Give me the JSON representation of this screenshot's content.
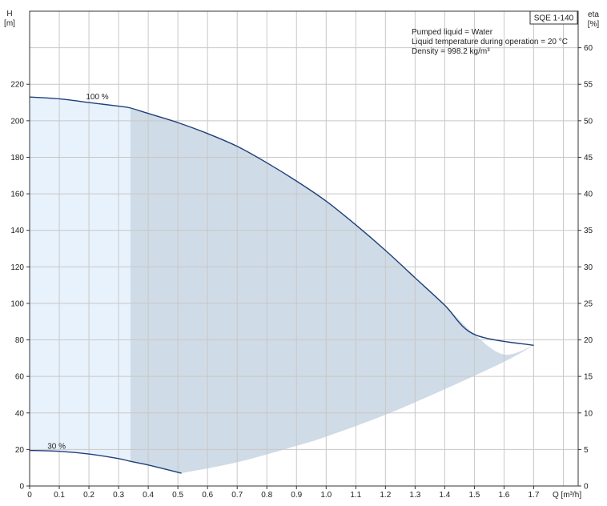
{
  "chart_data": {
    "type": "line",
    "title": "",
    "model_label": "SQE 1-140",
    "info_lines": [
      "Pumped liquid = Water",
      "Liquid temperature during operation = 20 °C",
      "Density = 998.2 kg/m³"
    ],
    "ylabel_left": [
      "H",
      "[m]"
    ],
    "ylabel_right": [
      "eta",
      "[%]"
    ],
    "xlabel": "Q [m³/h]",
    "xlim": [
      0,
      1.85
    ],
    "ylim": [
      0,
      260
    ],
    "ylim_right": [
      0,
      65
    ],
    "x_ticks": [
      0,
      0.1,
      0.2,
      0.3,
      0.4,
      0.5,
      0.6,
      0.7,
      0.8,
      0.9,
      1.0,
      1.1,
      1.2,
      1.3,
      1.4,
      1.5,
      1.6,
      1.7
    ],
    "x_tick_labels": [
      "0",
      "0.1",
      "0.2",
      "0.3",
      "0.4",
      "0.5",
      "0.6",
      "0.7",
      "0.8",
      "0.9",
      "1.0",
      "1.1",
      "1.2",
      "1.3",
      "1.4",
      "1.5",
      "1.6",
      "1.7"
    ],
    "y_ticks": [
      0,
      20,
      40,
      60,
      80,
      100,
      120,
      140,
      160,
      180,
      200,
      220
    ],
    "y_ticks_right": [
      0,
      5,
      10,
      15,
      20,
      25,
      30,
      35,
      40,
      45,
      50,
      55,
      60
    ],
    "grid": true,
    "series": [
      {
        "name": "100 %",
        "x": [
          0,
          0.1,
          0.2,
          0.3,
          0.34,
          0.4,
          0.5,
          0.6,
          0.7,
          0.8,
          0.9,
          1.0,
          1.1,
          1.2,
          1.3,
          1.4,
          1.5,
          1.6,
          1.7
        ],
        "y": [
          213,
          212,
          210,
          208,
          207,
          204,
          199,
          193,
          186,
          177,
          167,
          156,
          143,
          129,
          114,
          99,
          83,
          72,
          77
        ]
      },
      {
        "name": "30 %",
        "x": [
          0,
          0.1,
          0.2,
          0.3,
          0.34,
          0.4,
          0.5,
          0.51
        ],
        "y": [
          19.5,
          19,
          17.5,
          15,
          13.5,
          11.5,
          7.5,
          7
        ]
      }
    ],
    "operating_region_lower_boundary": {
      "x": [
        0.51,
        0.7,
        0.9,
        1.0,
        1.2,
        1.4,
        1.6,
        1.7
      ],
      "y": [
        7,
        13,
        22,
        27,
        39,
        53,
        68,
        77
      ]
    },
    "light_region_x_end": 0.34,
    "colors": {
      "curve": "#1f3f7a",
      "operating_area": "#cfdbe6",
      "extended_area": "#e8f2fc",
      "grid": "#c8c8c8",
      "axis": "#333333",
      "text": "#222222"
    }
  }
}
